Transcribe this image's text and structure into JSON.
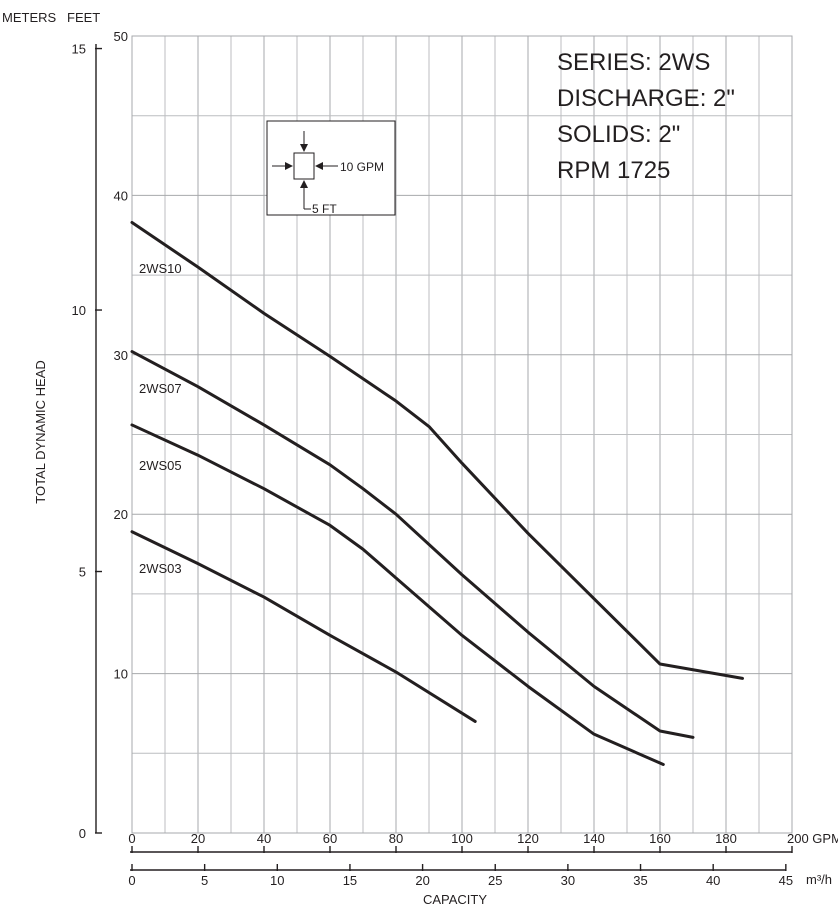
{
  "chart_data": {
    "type": "line",
    "title": "",
    "xlabel": "CAPACITY",
    "ylabel": "TOTAL DYNAMIC HEAD",
    "x_unit": "GPM",
    "x_secondary_unit": "m³/h",
    "y_unit": "FEET",
    "y_secondary_unit": "METERS",
    "xlim": [
      0,
      200
    ],
    "ylim": [
      0,
      50
    ],
    "x_ticks": [
      0,
      20,
      40,
      60,
      80,
      100,
      120,
      140,
      160,
      180,
      200
    ],
    "x_tick_labels": [
      "0",
      "20",
      "40",
      "60",
      "80",
      "100",
      "120",
      "140",
      "160",
      "180",
      "200 GPM"
    ],
    "x2_ticks": [
      0,
      5,
      10,
      15,
      20,
      25,
      30,
      35,
      40,
      45
    ],
    "x2_tick_labels": [
      "0",
      "5",
      "10",
      "15",
      "20",
      "25",
      "30",
      "35",
      "40",
      "45"
    ],
    "y_ticks": [
      10,
      20,
      30,
      40,
      50
    ],
    "y_tick_labels": [
      "10",
      "20",
      "30",
      "40",
      "50"
    ],
    "y2_ticks": [
      0,
      5,
      10,
      15
    ],
    "y2_tick_labels": [
      "0",
      "5",
      "10",
      "15"
    ],
    "grid": true,
    "series": [
      {
        "name": "2WS10",
        "x": [
          0,
          20,
          40,
          60,
          80,
          90,
          100,
          120,
          140,
          160,
          185
        ],
        "y": [
          38.3,
          35.5,
          32.6,
          29.9,
          27.1,
          25.5,
          23.2,
          18.8,
          14.7,
          10.6,
          9.7
        ]
      },
      {
        "name": "2WS07",
        "x": [
          0,
          20,
          40,
          60,
          70,
          80,
          100,
          120,
          140,
          160,
          170
        ],
        "y": [
          30.2,
          28.0,
          25.6,
          23.1,
          21.6,
          20.0,
          16.2,
          12.6,
          9.2,
          6.4,
          6.0
        ]
      },
      {
        "name": "2WS05",
        "x": [
          0,
          20,
          40,
          60,
          70,
          80,
          100,
          120,
          140,
          161
        ],
        "y": [
          25.6,
          23.7,
          21.6,
          19.3,
          17.8,
          16.0,
          12.4,
          9.2,
          6.2,
          4.3
        ]
      },
      {
        "name": "2WS03",
        "x": [
          0,
          20,
          40,
          60,
          80,
          104
        ],
        "y": [
          18.9,
          16.9,
          14.8,
          12.4,
          10.1,
          7.0
        ]
      }
    ],
    "line_color": "#231f20"
  },
  "info_box": {
    "series": "SERIES: 2WS",
    "discharge": "DISCHARGE: 2\"",
    "solids": "SOLIDS: 2\"",
    "rpm": "RPM 1725"
  },
  "grid_key": {
    "gpm_label": "10 GPM",
    "ft_label": "5 FT"
  },
  "header": {
    "meters": "METERS",
    "feet": "FEET"
  }
}
